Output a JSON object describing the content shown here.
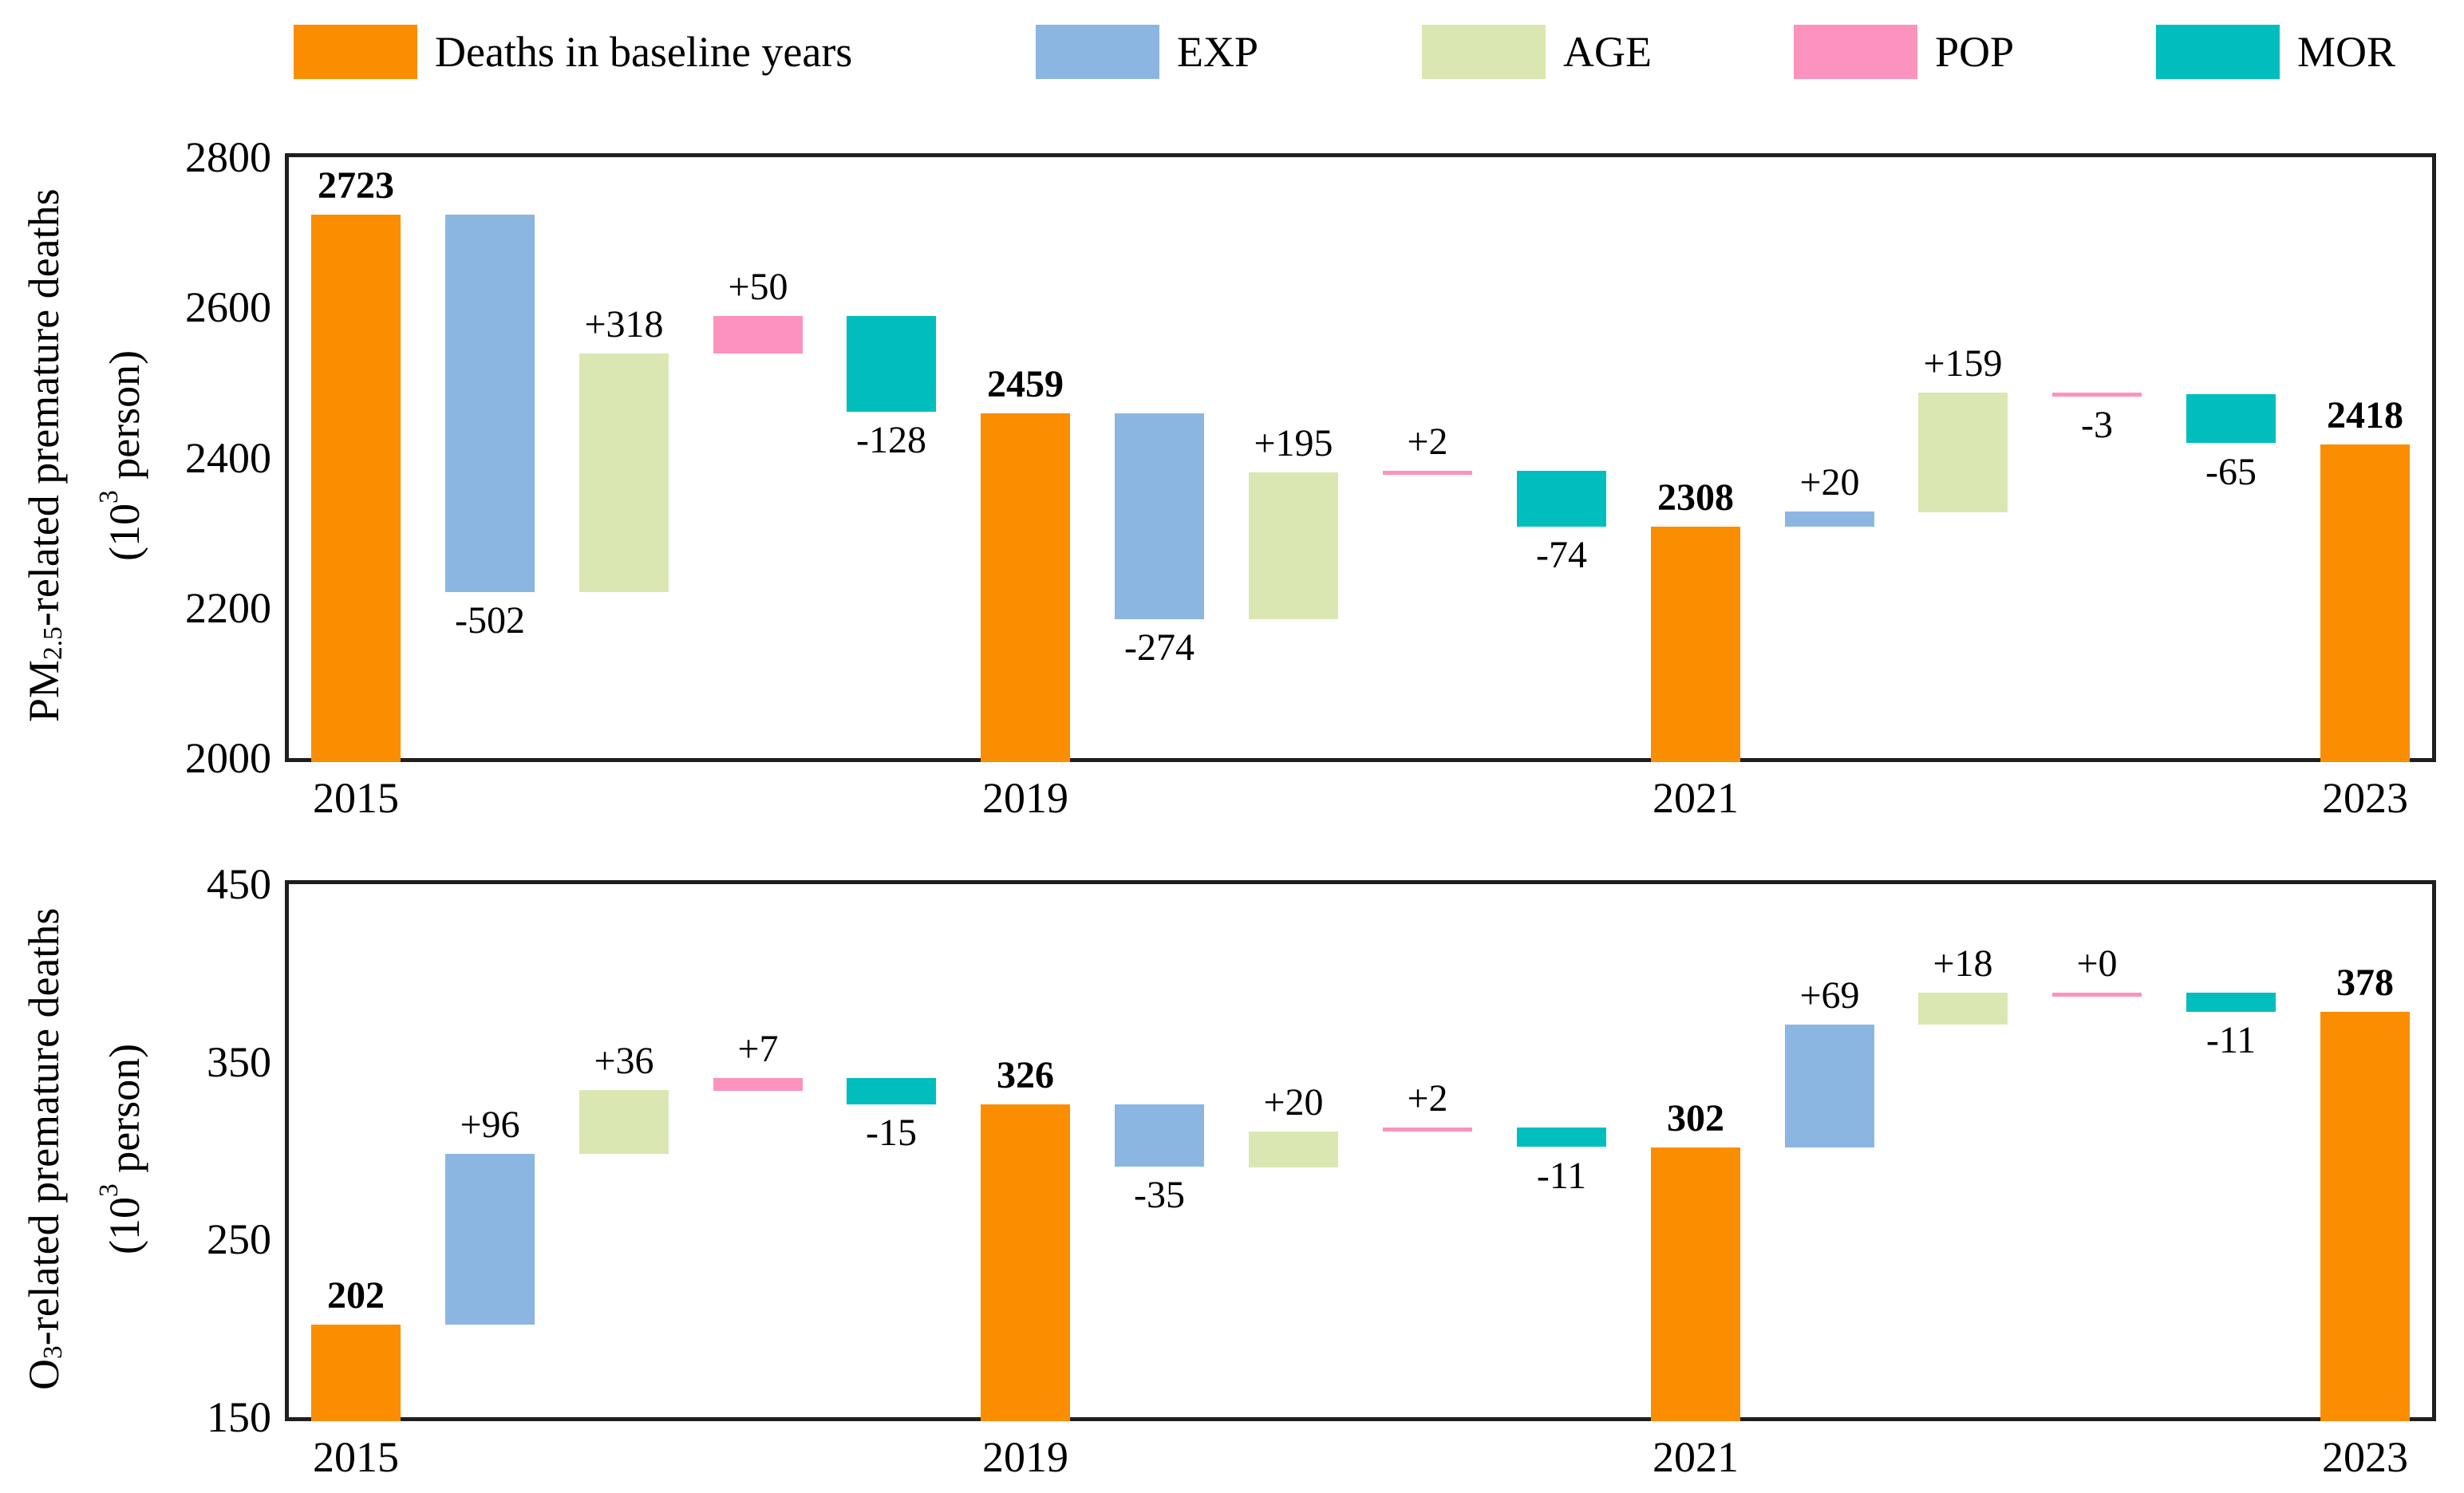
{
  "legend": {
    "items": [
      {
        "key": "baseline",
        "label": "Deaths in baseline years",
        "color": "#FA8D00"
      },
      {
        "key": "exp",
        "label": "EXP",
        "color": "#8CB6E2"
      },
      {
        "key": "age",
        "label": "AGE",
        "color": "#DAE7B2"
      },
      {
        "key": "pop",
        "label": "POP",
        "color": "#FC92BE"
      },
      {
        "key": "mor",
        "label": "MOR",
        "color": "#00BDBE"
      }
    ]
  },
  "colors": {
    "baseline": "#FA8D00",
    "exp": "#8CB6E2",
    "age": "#DAE7B2",
    "pop": "#FC92BE",
    "mor": "#00BDBE",
    "axis": "#1f1f1f",
    "text": "#000000"
  },
  "chart_data": [
    {
      "type": "bar",
      "subtype": "waterfall",
      "title": "",
      "xlabel": "",
      "ylabel": "PM2.5-related premature deaths (10^3 person)",
      "y_title": {
        "prefix": "PM",
        "sub": "2.5",
        "rest": "-related  premature deaths",
        "unit_prefix": "(10",
        "unit_sup": "3",
        "unit_suffix": " person)"
      },
      "ylim": [
        2000,
        2800
      ],
      "yticks": [
        "2000",
        "2200",
        "2400",
        "2600",
        "2800"
      ],
      "ytick_values": [
        2000,
        2200,
        2400,
        2600,
        2800
      ],
      "grid": false,
      "legend_position": "top",
      "xticks": [
        {
          "slot": 0,
          "label": "2015"
        },
        {
          "slot": 5,
          "label": "2019"
        },
        {
          "slot": 10,
          "label": "2021"
        },
        {
          "slot": 15,
          "label": "2023"
        }
      ],
      "bars": [
        {
          "category": "2015",
          "kind": "baseline",
          "label": "2723",
          "value": 2723,
          "from": 2000,
          "to": 2723,
          "color_key": "baseline",
          "label_side": "above",
          "bold": true
        },
        {
          "category": "EXP",
          "kind": "delta",
          "label": "-502",
          "value": -502,
          "from": 2723,
          "to": 2221,
          "color_key": "exp",
          "label_side": "below",
          "bold": false
        },
        {
          "category": "AGE",
          "kind": "delta",
          "label": "+318",
          "value": 318,
          "from": 2221,
          "to": 2539,
          "color_key": "age",
          "label_side": "above",
          "bold": false
        },
        {
          "category": "POP",
          "kind": "delta",
          "label": "+50",
          "value": 50,
          "from": 2539,
          "to": 2589,
          "color_key": "pop",
          "label_side": "above",
          "bold": false
        },
        {
          "category": "MOR",
          "kind": "delta",
          "label": "-128",
          "value": -128,
          "from": 2589,
          "to": 2461,
          "color_key": "mor",
          "label_side": "below",
          "bold": false
        },
        {
          "category": "2019",
          "kind": "baseline",
          "label": "2459",
          "value": 2459,
          "from": 2000,
          "to": 2459,
          "color_key": "baseline",
          "label_side": "above",
          "bold": true
        },
        {
          "category": "EXP",
          "kind": "delta",
          "label": "-274",
          "value": -274,
          "from": 2459,
          "to": 2185,
          "color_key": "exp",
          "label_side": "below",
          "bold": false
        },
        {
          "category": "AGE",
          "kind": "delta",
          "label": "+195",
          "value": 195,
          "from": 2185,
          "to": 2380,
          "color_key": "age",
          "label_side": "above",
          "bold": false
        },
        {
          "category": "POP",
          "kind": "delta",
          "label": "+2",
          "value": 2,
          "from": 2380,
          "to": 2382,
          "color_key": "pop",
          "label_side": "above",
          "bold": false
        },
        {
          "category": "MOR",
          "kind": "delta",
          "label": "-74",
          "value": -74,
          "from": 2382,
          "to": 2308,
          "color_key": "mor",
          "label_side": "below",
          "bold": false
        },
        {
          "category": "2021",
          "kind": "baseline",
          "label": "2308",
          "value": 2308,
          "from": 2000,
          "to": 2308,
          "color_key": "baseline",
          "label_side": "above",
          "bold": true
        },
        {
          "category": "EXP",
          "kind": "delta",
          "label": "+20",
          "value": 20,
          "from": 2308,
          "to": 2328,
          "color_key": "exp",
          "label_side": "above",
          "bold": false
        },
        {
          "category": "AGE",
          "kind": "delta",
          "label": "+159",
          "value": 159,
          "from": 2328,
          "to": 2487,
          "color_key": "age",
          "label_side": "above",
          "bold": false
        },
        {
          "category": "POP",
          "kind": "delta",
          "label": "-3",
          "value": -3,
          "from": 2487,
          "to": 2484,
          "color_key": "pop",
          "label_side": "below",
          "bold": false
        },
        {
          "category": "MOR",
          "kind": "delta",
          "label": "-65",
          "value": -65,
          "from": 2484,
          "to": 2419,
          "color_key": "mor",
          "label_side": "below",
          "bold": false
        },
        {
          "category": "2023",
          "kind": "baseline",
          "label": "2418",
          "value": 2418,
          "from": 2000,
          "to": 2418,
          "color_key": "baseline",
          "label_side": "above",
          "bold": true
        }
      ]
    },
    {
      "type": "bar",
      "subtype": "waterfall",
      "title": "",
      "xlabel": "",
      "ylabel": "O3-related premature deaths (10^3 person)",
      "y_title": {
        "prefix": "O",
        "sub": "3",
        "rest": "-related  premature deaths",
        "unit_prefix": "(10",
        "unit_sup": "3",
        "unit_suffix": " person)"
      },
      "ylim": [
        150,
        450
      ],
      "yticks": [
        "150",
        "250",
        "350",
        "450"
      ],
      "ytick_values": [
        150,
        250,
        350,
        450
      ],
      "grid": false,
      "legend_position": "top",
      "xticks": [
        {
          "slot": 0,
          "label": "2015"
        },
        {
          "slot": 5,
          "label": "2019"
        },
        {
          "slot": 10,
          "label": "2021"
        },
        {
          "slot": 15,
          "label": "2023"
        }
      ],
      "bars": [
        {
          "category": "2015",
          "kind": "baseline",
          "label": "202",
          "value": 202,
          "from": 150,
          "to": 202,
          "color_key": "baseline",
          "label_side": "above",
          "bold": true
        },
        {
          "category": "EXP",
          "kind": "delta",
          "label": "+96",
          "value": 96,
          "from": 202,
          "to": 298,
          "color_key": "exp",
          "label_side": "above",
          "bold": false
        },
        {
          "category": "AGE",
          "kind": "delta",
          "label": "+36",
          "value": 36,
          "from": 298,
          "to": 334,
          "color_key": "age",
          "label_side": "above",
          "bold": false
        },
        {
          "category": "POP",
          "kind": "delta",
          "label": "+7",
          "value": 7,
          "from": 334,
          "to": 341,
          "color_key": "pop",
          "label_side": "above",
          "bold": false
        },
        {
          "category": "MOR",
          "kind": "delta",
          "label": "-15",
          "value": -15,
          "from": 341,
          "to": 326,
          "color_key": "mor",
          "label_side": "below",
          "bold": false
        },
        {
          "category": "2019",
          "kind": "baseline",
          "label": "326",
          "value": 326,
          "from": 150,
          "to": 326,
          "color_key": "baseline",
          "label_side": "above",
          "bold": true
        },
        {
          "category": "EXP",
          "kind": "delta",
          "label": "-35",
          "value": -35,
          "from": 326,
          "to": 291,
          "color_key": "exp",
          "label_side": "below",
          "bold": false
        },
        {
          "category": "AGE",
          "kind": "delta",
          "label": "+20",
          "value": 20,
          "from": 291,
          "to": 311,
          "color_key": "age",
          "label_side": "above",
          "bold": false
        },
        {
          "category": "POP",
          "kind": "delta",
          "label": "+2",
          "value": 2,
          "from": 311,
          "to": 313,
          "color_key": "pop",
          "label_side": "above",
          "bold": false
        },
        {
          "category": "MOR",
          "kind": "delta",
          "label": "-11",
          "value": -11,
          "from": 313,
          "to": 302,
          "color_key": "mor",
          "label_side": "below",
          "bold": false
        },
        {
          "category": "2021",
          "kind": "baseline",
          "label": "302",
          "value": 302,
          "from": 150,
          "to": 302,
          "color_key": "baseline",
          "label_side": "above",
          "bold": true
        },
        {
          "category": "EXP",
          "kind": "delta",
          "label": "+69",
          "value": 69,
          "from": 302,
          "to": 371,
          "color_key": "exp",
          "label_side": "above",
          "bold": false
        },
        {
          "category": "AGE",
          "kind": "delta",
          "label": "+18",
          "value": 18,
          "from": 371,
          "to": 389,
          "color_key": "age",
          "label_side": "above",
          "bold": false
        },
        {
          "category": "POP",
          "kind": "delta",
          "label": "+0",
          "value": 0,
          "from": 389,
          "to": 389,
          "color_key": "pop",
          "label_side": "above",
          "bold": false
        },
        {
          "category": "MOR",
          "kind": "delta",
          "label": "-11",
          "value": -11,
          "from": 389,
          "to": 378,
          "color_key": "mor",
          "label_side": "below",
          "bold": false
        },
        {
          "category": "2023",
          "kind": "baseline",
          "label": "378",
          "value": 378,
          "from": 150,
          "to": 378,
          "color_key": "baseline",
          "label_side": "above",
          "bold": true
        }
      ]
    }
  ]
}
